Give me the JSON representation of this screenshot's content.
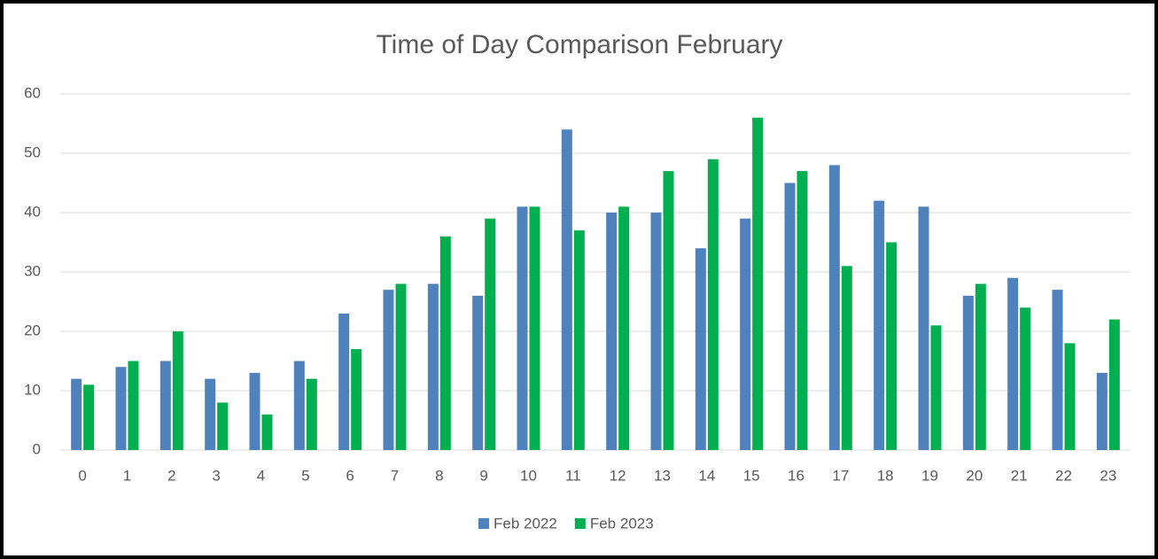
{
  "chart_data": {
    "type": "bar",
    "title": "Time of Day Comparison February",
    "categories": [
      "0",
      "1",
      "2",
      "3",
      "4",
      "5",
      "6",
      "7",
      "8",
      "9",
      "10",
      "11",
      "12",
      "13",
      "14",
      "15",
      "16",
      "17",
      "18",
      "19",
      "20",
      "21",
      "22",
      "23"
    ],
    "series": [
      {
        "name": "Feb 2022",
        "color": "#4f81bd",
        "values": [
          12,
          14,
          15,
          12,
          13,
          15,
          23,
          27,
          28,
          26,
          41,
          54,
          40,
          40,
          34,
          39,
          45,
          48,
          42,
          41,
          26,
          29,
          27,
          13
        ]
      },
      {
        "name": "Feb 2023",
        "color": "#00b050",
        "values": [
          11,
          15,
          20,
          8,
          6,
          12,
          17,
          28,
          36,
          39,
          41,
          37,
          41,
          47,
          49,
          56,
          47,
          31,
          35,
          21,
          28,
          24,
          18,
          22
        ]
      }
    ],
    "ylim": [
      0,
      60
    ],
    "yticks": [
      0,
      10,
      20,
      30,
      40,
      50,
      60
    ],
    "grid": true,
    "legend": "bottom"
  }
}
